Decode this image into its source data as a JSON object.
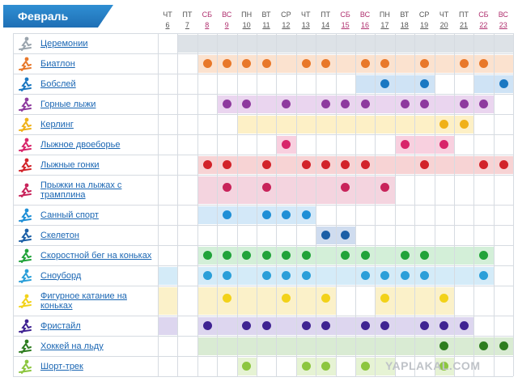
{
  "header": {
    "month": "Февраль"
  },
  "days": [
    {
      "dow": "ЧТ",
      "num": "6",
      "weekend": false
    },
    {
      "dow": "ПТ",
      "num": "7",
      "weekend": false
    },
    {
      "dow": "СБ",
      "num": "8",
      "weekend": true
    },
    {
      "dow": "ВС",
      "num": "9",
      "weekend": true
    },
    {
      "dow": "ПН",
      "num": "10",
      "weekend": false
    },
    {
      "dow": "ВТ",
      "num": "11",
      "weekend": false
    },
    {
      "dow": "СР",
      "num": "12",
      "weekend": false
    },
    {
      "dow": "ЧТ",
      "num": "13",
      "weekend": false
    },
    {
      "dow": "ПТ",
      "num": "14",
      "weekend": false
    },
    {
      "dow": "СБ",
      "num": "15",
      "weekend": true
    },
    {
      "dow": "ВС",
      "num": "16",
      "weekend": true
    },
    {
      "dow": "ПН",
      "num": "17",
      "weekend": false
    },
    {
      "dow": "ВТ",
      "num": "18",
      "weekend": false
    },
    {
      "dow": "СР",
      "num": "19",
      "weekend": false
    },
    {
      "dow": "ЧТ",
      "num": "20",
      "weekend": false
    },
    {
      "dow": "ПТ",
      "num": "21",
      "weekend": false
    },
    {
      "dow": "СБ",
      "num": "22",
      "weekend": true
    },
    {
      "dow": "ВС",
      "num": "23",
      "weekend": true
    }
  ],
  "sports": [
    {
      "name": "Церемонии",
      "icon": "torch-icon",
      "color": "#9aa4ad",
      "band": "#dde2e7",
      "bands": [
        [
          1,
          17
        ]
      ],
      "events": []
    },
    {
      "name": "Биатлон",
      "icon": "biathlon-icon",
      "color": "#e8782a",
      "band": "#fbe2cf",
      "bands": [
        [
          2,
          17
        ]
      ],
      "events": [
        2,
        3,
        4,
        5,
        7,
        8,
        10,
        11,
        13,
        15,
        16
      ]
    },
    {
      "name": "Бобслей",
      "icon": "bobsleigh-icon",
      "color": "#1a78c2",
      "band": "#cfe3f5",
      "bands": [
        [
          10,
          13
        ],
        [
          16,
          17
        ]
      ],
      "events": [
        11,
        13,
        17
      ]
    },
    {
      "name": "Горные лыжи",
      "icon": "alpine-skiing-icon",
      "color": "#8e3a9e",
      "band": "#ead5ef",
      "bands": [
        [
          3,
          16
        ]
      ],
      "events": [
        3,
        4,
        6,
        8,
        9,
        10,
        12,
        13,
        15,
        16
      ]
    },
    {
      "name": "Керлинг",
      "icon": "curling-icon",
      "color": "#f0b118",
      "band": "#fdf0c6",
      "bands": [
        [
          4,
          15
        ]
      ],
      "events": [
        14,
        15
      ]
    },
    {
      "name": "Лыжное двоеборье",
      "icon": "nordic-combined-icon",
      "color": "#d8256a",
      "band": "#f8d0df",
      "bands": [
        [
          6,
          6
        ],
        [
          12,
          14
        ]
      ],
      "events": [
        6,
        12,
        14
      ]
    },
    {
      "name": "Лыжные гонки",
      "icon": "cross-country-icon",
      "color": "#d2232a",
      "band": "#f7d3d4",
      "bands": [
        [
          2,
          17
        ]
      ],
      "events": [
        2,
        3,
        5,
        7,
        8,
        9,
        10,
        13,
        16,
        17
      ]
    },
    {
      "name": "Прыжки на лыжах с трамплина",
      "icon": "ski-jumping-icon",
      "color": "#c8235a",
      "band": "#f4d4df",
      "bands": [
        [
          2,
          11
        ]
      ],
      "events": [
        3,
        5,
        9,
        11
      ]
    },
    {
      "name": "Санный спорт",
      "icon": "luge-icon",
      "color": "#1f8fd6",
      "band": "#d3e8f8",
      "bands": [
        [
          2,
          7
        ]
      ],
      "events": [
        3,
        5,
        6,
        7
      ]
    },
    {
      "name": "Скелетон",
      "icon": "skeleton-icon",
      "color": "#1b5fa6",
      "band": "#cfdcef",
      "bands": [
        [
          8,
          9
        ]
      ],
      "events": [
        8,
        9
      ]
    },
    {
      "name": "Скоростной бег на коньках",
      "icon": "speed-skating-icon",
      "color": "#21a33a",
      "band": "#d3efd8",
      "bands": [
        [
          2,
          16
        ]
      ],
      "events": [
        2,
        3,
        4,
        5,
        6,
        7,
        9,
        10,
        12,
        13,
        16
      ]
    },
    {
      "name": "Сноуборд",
      "icon": "snowboard-icon",
      "color": "#2b9fd9",
      "band": "#d4ebf8",
      "bands": [
        [
          0,
          0
        ],
        [
          2,
          16
        ]
      ],
      "events": [
        2,
        3,
        5,
        6,
        7,
        10,
        11,
        12,
        13,
        16
      ]
    },
    {
      "name": "Фигурное катание на коньках",
      "icon": "figure-skating-icon",
      "color": "#f2d21a",
      "band": "#fbf1c9",
      "bands": [
        [
          0,
          0
        ],
        [
          2,
          8
        ],
        [
          11,
          14
        ]
      ],
      "events": [
        3,
        6,
        8,
        11,
        14
      ]
    },
    {
      "name": "Фристайл",
      "icon": "freestyle-icon",
      "color": "#3f2392",
      "band": "#ddd6ef",
      "bands": [
        [
          0,
          0
        ],
        [
          2,
          15
        ]
      ],
      "events": [
        2,
        4,
        5,
        7,
        8,
        10,
        11,
        13,
        14,
        15
      ]
    },
    {
      "name": "Хоккей на льду",
      "icon": "ice-hockey-icon",
      "color": "#2e7d1f",
      "band": "#d9ebd3",
      "bands": [
        [
          2,
          17
        ]
      ],
      "events": [
        14,
        16,
        17
      ]
    },
    {
      "name": "Шорт-трек",
      "icon": "short-track-icon",
      "color": "#8cc63f",
      "band": "#e6f3d4",
      "bands": [
        [
          4,
          4
        ],
        [
          7,
          8
        ],
        [
          10,
          11
        ],
        [
          14,
          14
        ]
      ],
      "events": [
        4,
        7,
        8,
        10,
        14
      ]
    }
  ],
  "watermark": "YAPLAKAL.COM"
}
